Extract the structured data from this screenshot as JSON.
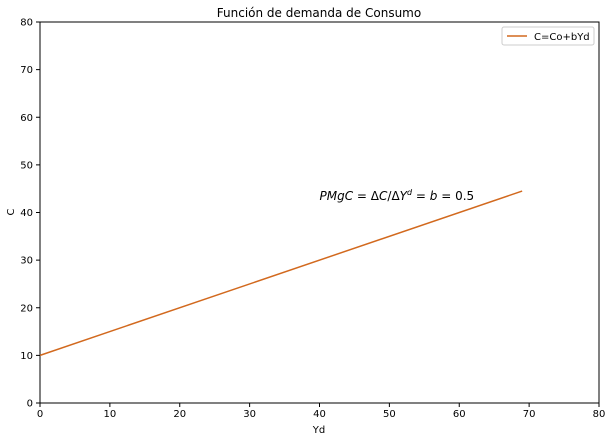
{
  "chart_data": {
    "type": "line",
    "title": "Función de demanda de Consumo",
    "xlabel": "Yd",
    "ylabel": "C",
    "xlim": [
      0,
      80
    ],
    "ylim": [
      0,
      80
    ],
    "xticks": [
      0,
      10,
      20,
      30,
      40,
      50,
      60,
      70,
      80
    ],
    "yticks": [
      0,
      10,
      20,
      30,
      40,
      50,
      60,
      70,
      80
    ],
    "grid": false,
    "legend_position": "top-right",
    "series": [
      {
        "name": "C=Co+bYd",
        "color": "#d2691e",
        "x": [
          0,
          69
        ],
        "y": [
          10,
          44.5
        ]
      }
    ],
    "annotations": [
      {
        "text": "PMgC = ΔC/ΔY^d = b = 0.5",
        "x": 40,
        "y": 43.5
      }
    ]
  }
}
